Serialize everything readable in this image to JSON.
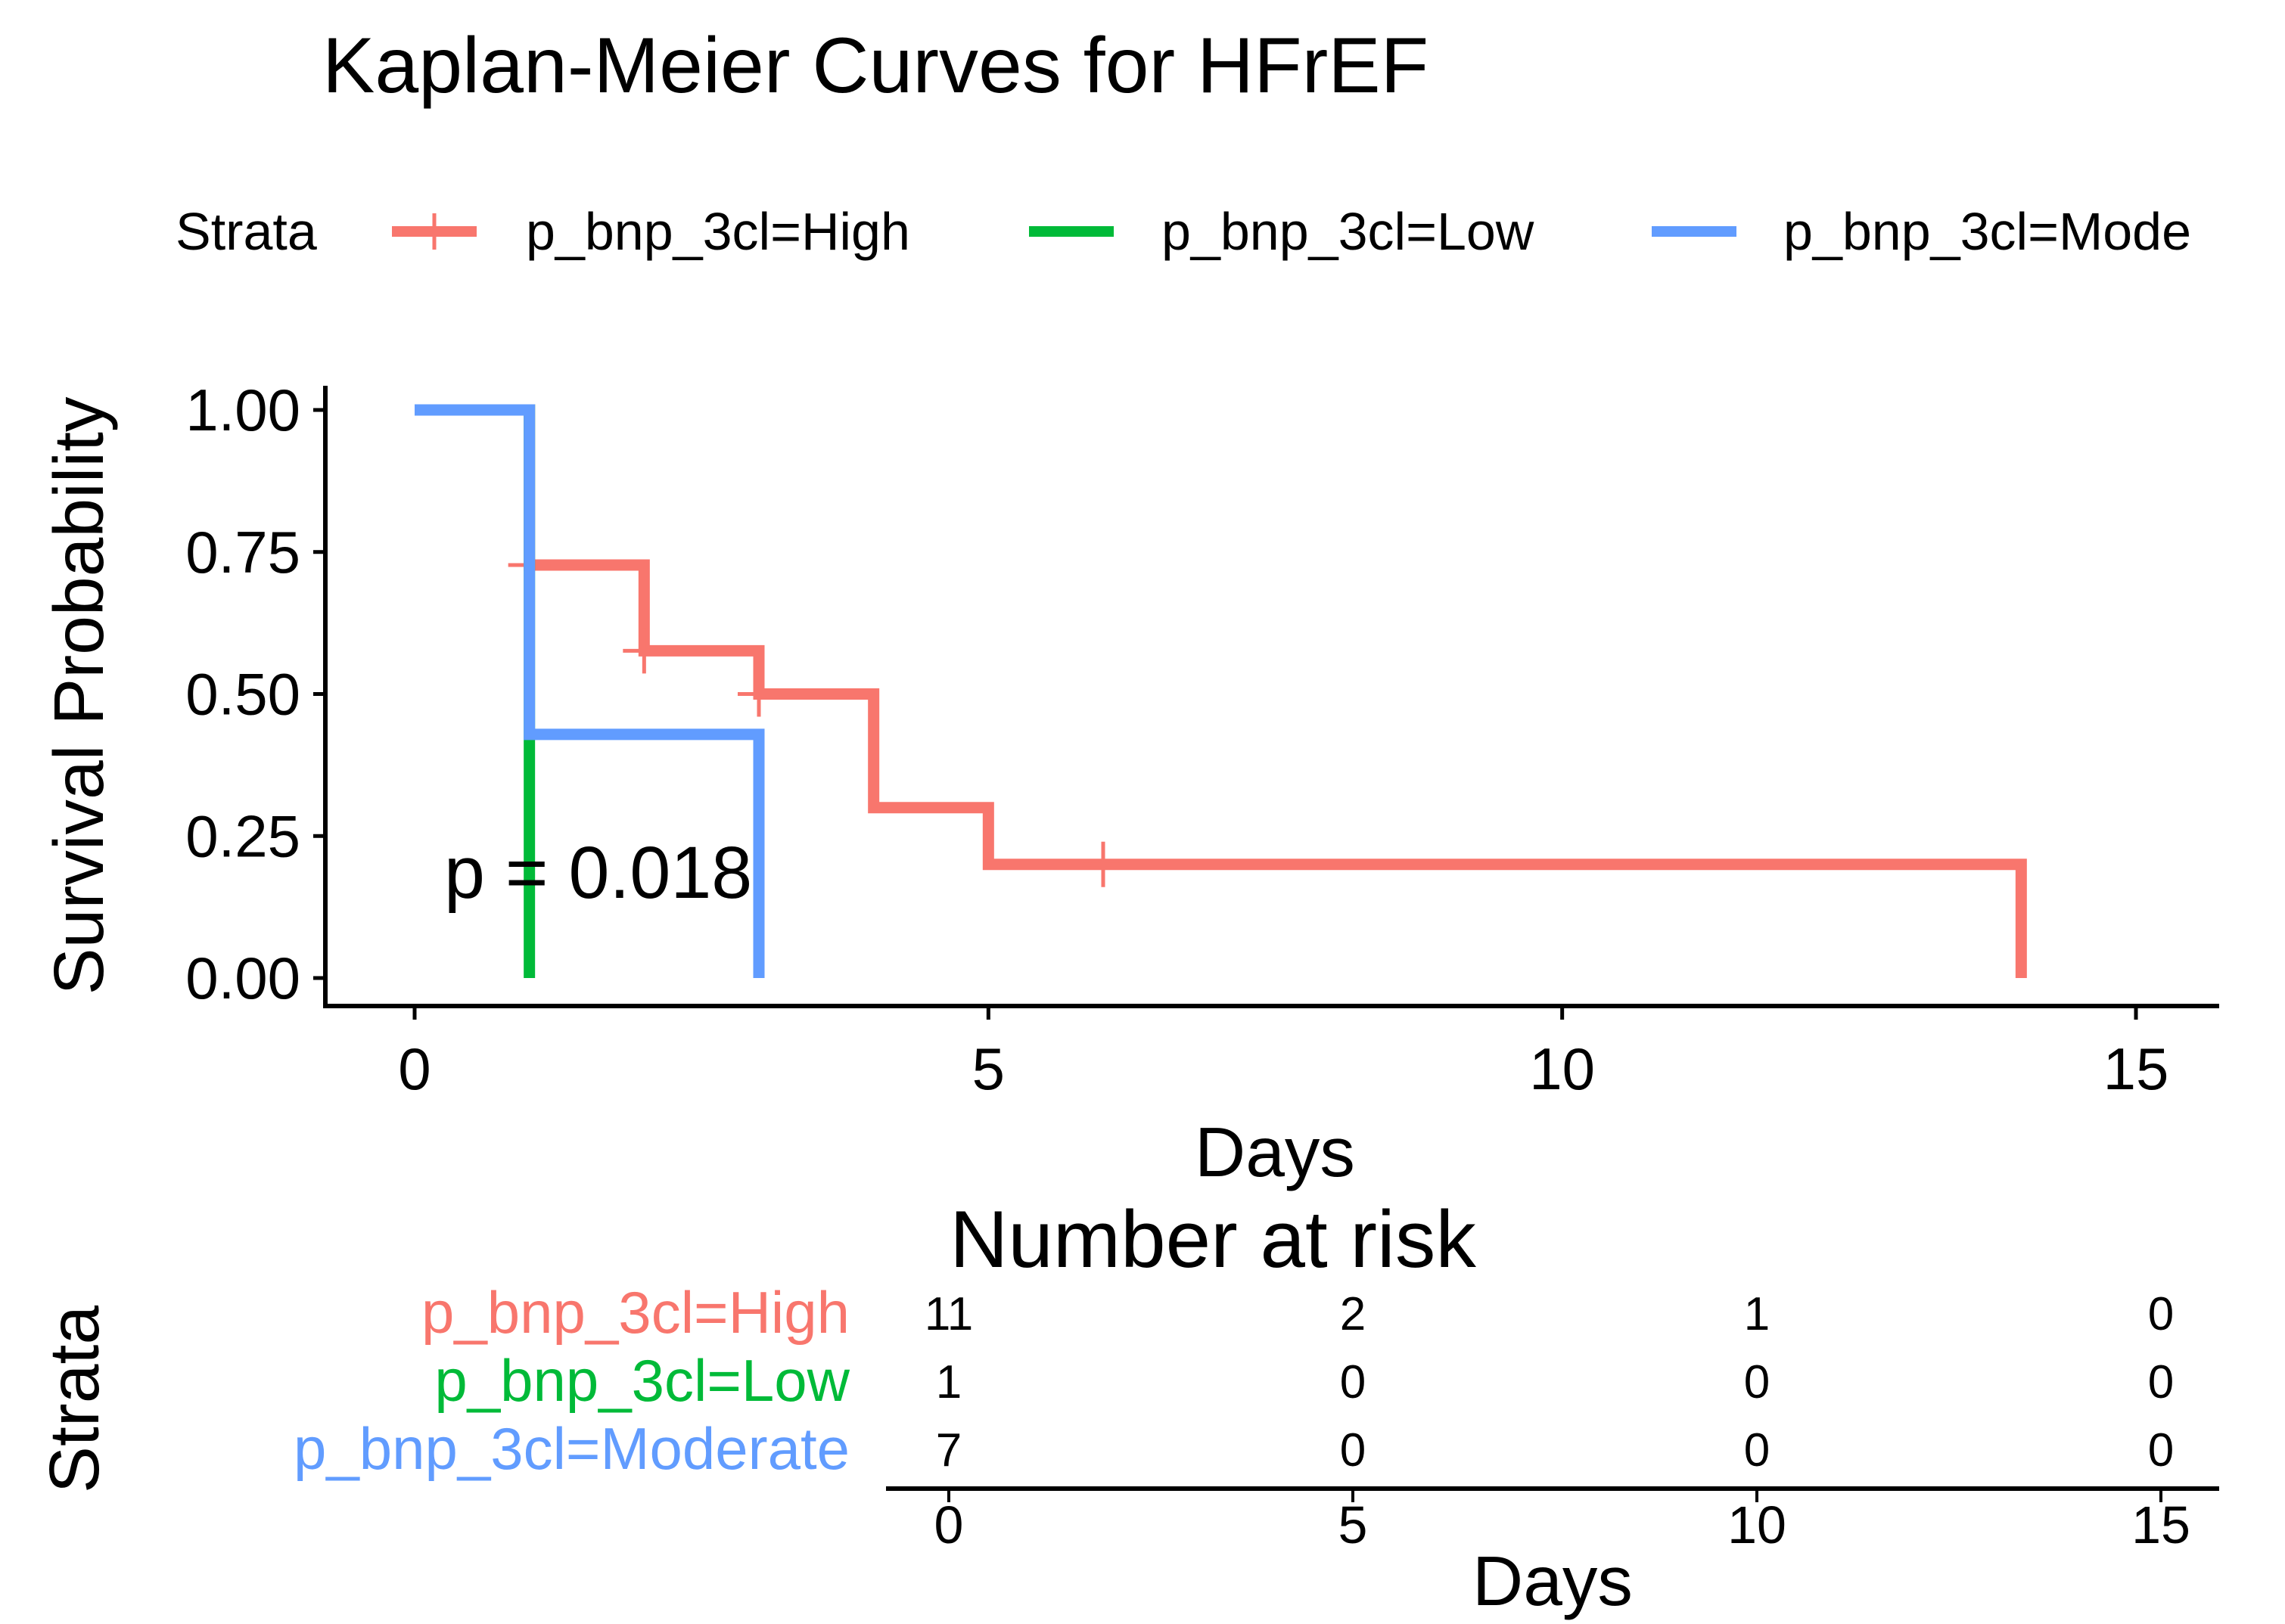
{
  "chart_data": [
    {
      "type": "line",
      "subtype": "kaplan-meier step",
      "title": "Kaplan-Meier Curves for HFrEF",
      "xlabel": "Days",
      "ylabel": "Survival Probability",
      "xlim": [
        0,
        15
      ],
      "ylim": [
        0,
        1
      ],
      "xticks": [
        "0",
        "5",
        "10",
        "15"
      ],
      "yticks": [
        "0.00",
        "0.25",
        "0.50",
        "0.75",
        "1.00"
      ],
      "grid": false,
      "legend": {
        "title": "Strata",
        "placement": "top"
      },
      "annotation": "p = 0.018",
      "series": [
        {
          "name": "p_bnp_3cl=High",
          "legend_label": "p_bnp_3cl=High",
          "color": "#F8766D",
          "steps": [
            [
              0,
              1.0
            ],
            [
              1,
              0.727
            ],
            [
              2,
              0.576
            ],
            [
              3,
              0.5
            ],
            [
              4,
              0.3
            ],
            [
              5,
              0.2
            ],
            [
              14,
              0.0
            ]
          ],
          "censored": [
            [
              1,
              0.727
            ],
            [
              2,
              0.576
            ],
            [
              3,
              0.5
            ],
            [
              6,
              0.2
            ]
          ]
        },
        {
          "name": "p_bnp_3cl=Low",
          "legend_label": "p_bnp_3cl=Low",
          "color": "#00BA38",
          "steps": [
            [
              0,
              1.0
            ],
            [
              1,
              0.0
            ]
          ],
          "censored": []
        },
        {
          "name": "p_bnp_3cl=Moderate",
          "legend_label": "p_bnp_3cl=Mode",
          "color": "#619CFF",
          "steps": [
            [
              0,
              1.0
            ],
            [
              1,
              0.429
            ],
            [
              3,
              0.0
            ]
          ],
          "censored": []
        }
      ]
    },
    {
      "type": "table",
      "title": "Number at risk",
      "xlabel": "Days",
      "ylabel": "Strata",
      "xticks": [
        "0",
        "5",
        "10",
        "15"
      ],
      "times": [
        0,
        5,
        10,
        15
      ],
      "rows": [
        {
          "name": "p_bnp_3cl=High",
          "color": "#F8766D",
          "values": [
            "11",
            "2",
            "1",
            "0"
          ]
        },
        {
          "name": "p_bnp_3cl=Low",
          "color": "#00BA38",
          "values": [
            "1",
            "0",
            "0",
            "0"
          ]
        },
        {
          "name": "p_bnp_3cl=Moderate",
          "color": "#619CFF",
          "values": [
            "7",
            "0",
            "0",
            "0"
          ]
        }
      ]
    }
  ]
}
